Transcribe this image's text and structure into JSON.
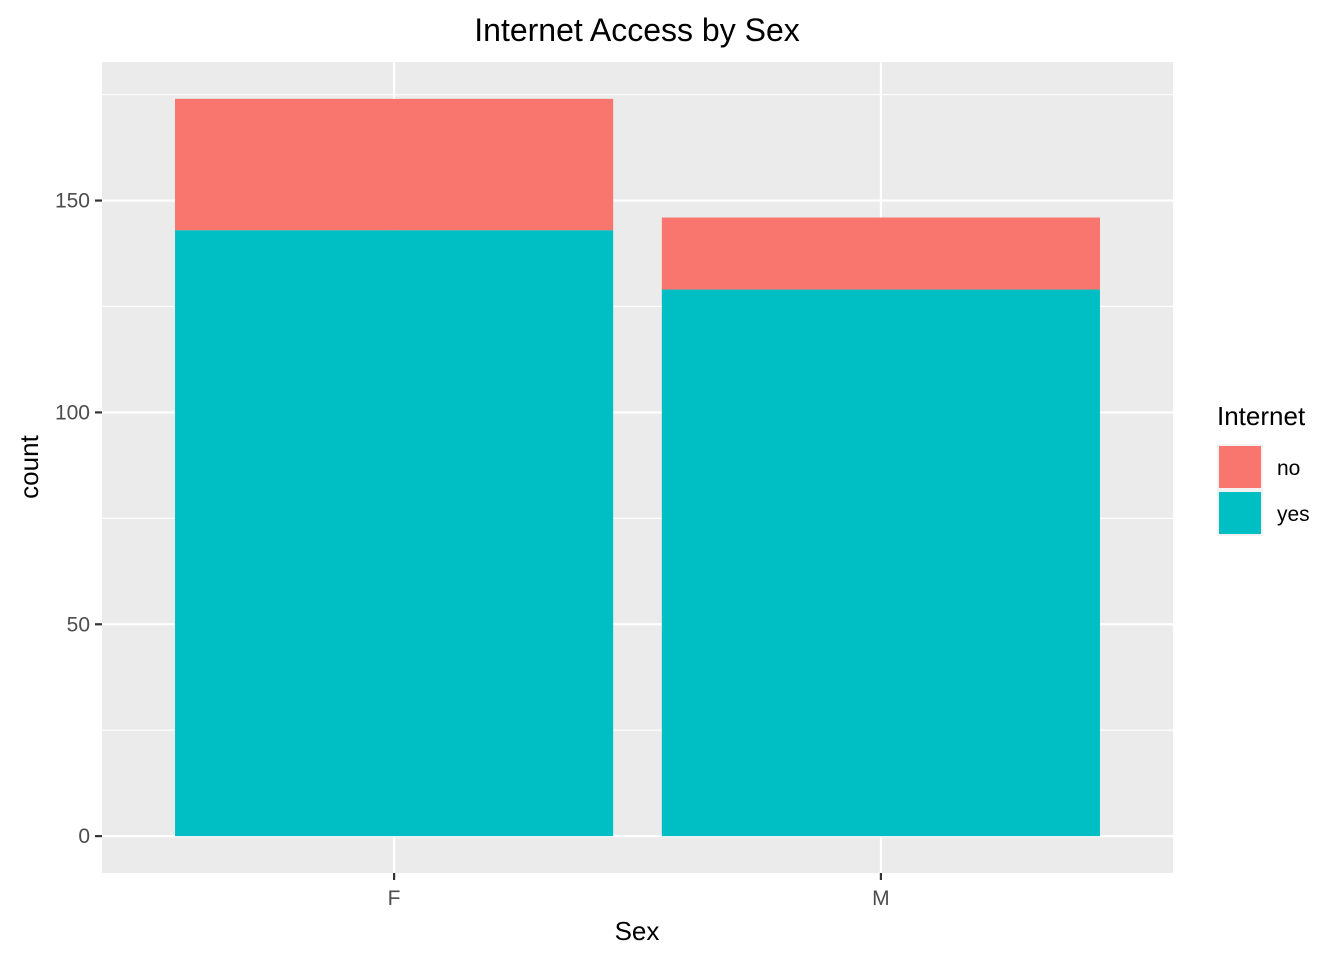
{
  "chart_data": {
    "type": "bar",
    "stacked": true,
    "title": "Internet Access by Sex",
    "xlabel": "Sex",
    "ylabel": "count",
    "categories": [
      "F",
      "M"
    ],
    "series": [
      {
        "name": "yes",
        "values": [
          143,
          129
        ],
        "color": "#00BFC4"
      },
      {
        "name": "no",
        "values": [
          31,
          17
        ],
        "color": "#F8766D"
      }
    ],
    "ylim": [
      -8.7,
      182.7
    ],
    "yticks": [
      0,
      50,
      100,
      150
    ],
    "legend": {
      "title": "Internet",
      "position": "right",
      "entries": [
        {
          "label": "no",
          "color": "#F8766D"
        },
        {
          "label": "yes",
          "color": "#00BFC4"
        }
      ]
    },
    "grid": true,
    "panel_background": "#EBEBEB",
    "grid_color": "#FFFFFF"
  }
}
